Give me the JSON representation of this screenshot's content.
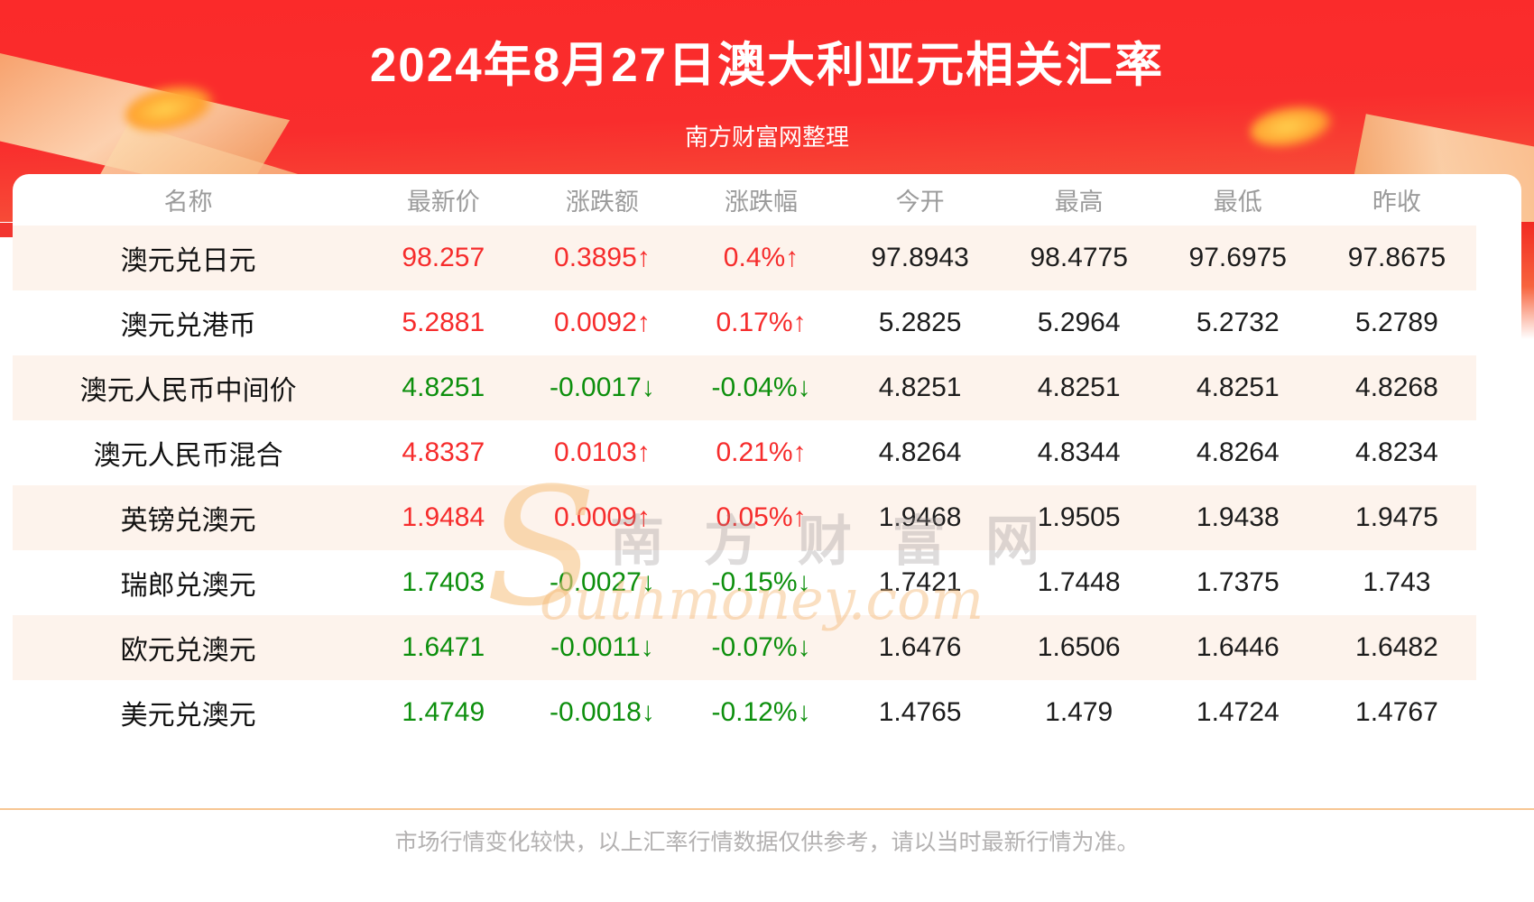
{
  "header": {
    "title": "2024年8月27日澳大利亚元相关汇率",
    "subtitle": "南方财富网整理"
  },
  "table": {
    "columns": [
      "名称",
      "最新价",
      "涨跌额",
      "涨跌幅",
      "今开",
      "最高",
      "最低",
      "昨收"
    ],
    "rows": [
      {
        "name": "澳元兑日元",
        "latest": "98.257",
        "change": "0.3895↑",
        "change_pct": "0.4%↑",
        "open": "97.8943",
        "high": "98.4775",
        "low": "97.6975",
        "prev_close": "97.8675",
        "direction": "up"
      },
      {
        "name": "澳元兑港币",
        "latest": "5.2881",
        "change": "0.0092↑",
        "change_pct": "0.17%↑",
        "open": "5.2825",
        "high": "5.2964",
        "low": "5.2732",
        "prev_close": "5.2789",
        "direction": "up"
      },
      {
        "name": "澳元人民币中间价",
        "latest": "4.8251",
        "change": "-0.0017↓",
        "change_pct": "-0.04%↓",
        "open": "4.8251",
        "high": "4.8251",
        "low": "4.8251",
        "prev_close": "4.8268",
        "direction": "down"
      },
      {
        "name": "澳元人民币混合",
        "latest": "4.8337",
        "change": "0.0103↑",
        "change_pct": "0.21%↑",
        "open": "4.8264",
        "high": "4.8344",
        "low": "4.8264",
        "prev_close": "4.8234",
        "direction": "up"
      },
      {
        "name": "英镑兑澳元",
        "latest": "1.9484",
        "change": "0.0009↑",
        "change_pct": "0.05%↑",
        "open": "1.9468",
        "high": "1.9505",
        "low": "1.9438",
        "prev_close": "1.9475",
        "direction": "up"
      },
      {
        "name": "瑞郎兑澳元",
        "latest": "1.7403",
        "change": "-0.0027↓",
        "change_pct": "-0.15%↓",
        "open": "1.7421",
        "high": "1.7448",
        "low": "1.7375",
        "prev_close": "1.743",
        "direction": "down"
      },
      {
        "name": "欧元兑澳元",
        "latest": "1.6471",
        "change": "-0.0011↓",
        "change_pct": "-0.07%↓",
        "open": "1.6476",
        "high": "1.6506",
        "low": "1.6446",
        "prev_close": "1.6482",
        "direction": "down"
      },
      {
        "name": "美元兑澳元",
        "latest": "1.4749",
        "change": "-0.0018↓",
        "change_pct": "-0.12%↓",
        "open": "1.4765",
        "high": "1.479",
        "low": "1.4724",
        "prev_close": "1.4767",
        "direction": "down"
      }
    ]
  },
  "chart_data": {
    "type": "table",
    "title": "2024年8月27日澳大利亚元相关汇率",
    "columns": [
      "名称",
      "最新价",
      "涨跌额",
      "涨跌幅",
      "今开",
      "最高",
      "最低",
      "昨收"
    ],
    "rows": [
      [
        "澳元兑日元",
        98.257,
        0.3895,
        "0.4%",
        97.8943,
        98.4775,
        97.6975,
        97.8675
      ],
      [
        "澳元兑港币",
        5.2881,
        0.0092,
        "0.17%",
        5.2825,
        5.2964,
        5.2732,
        5.2789
      ],
      [
        "澳元人民币中间价",
        4.8251,
        -0.0017,
        "-0.04%",
        4.8251,
        4.8251,
        4.8251,
        4.8268
      ],
      [
        "澳元人民币混合",
        4.8337,
        0.0103,
        "0.21%",
        4.8264,
        4.8344,
        4.8264,
        4.8234
      ],
      [
        "英镑兑澳元",
        1.9484,
        0.0009,
        "0.05%",
        1.9468,
        1.9505,
        1.9438,
        1.9475
      ],
      [
        "瑞郎兑澳元",
        1.7403,
        -0.0027,
        "-0.15%",
        1.7421,
        1.7448,
        1.7375,
        1.743
      ],
      [
        "欧元兑澳元",
        1.6471,
        -0.0011,
        "-0.07%",
        1.6476,
        1.6506,
        1.6446,
        1.6482
      ],
      [
        "美元兑澳元",
        1.4749,
        -0.0018,
        "-0.12%",
        1.4765,
        1.479,
        1.4724,
        1.4767
      ]
    ]
  },
  "watermark": {
    "swirl": "S",
    "cn": "南方财富网",
    "en": "outhmoney.com"
  },
  "footer": {
    "note": "市场行情变化较快，以上汇率行情数据仅供参考，请以当时最新行情为准。"
  },
  "colors": {
    "up": "#f62c2c",
    "down": "#0d8f0d",
    "banner_red": "#f92c2c",
    "stripe": "#fdf3ec",
    "divider": "#f7c694"
  }
}
